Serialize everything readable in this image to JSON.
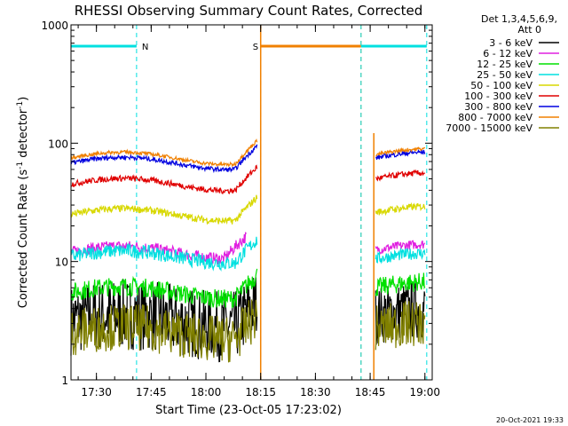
{
  "chart_data": {
    "type": "line",
    "title": "RHESSI Observing Summary Count Rates, Corrected",
    "xlabel": "Start Time (23-Oct-05 17:23:02)",
    "ylabel_main": "Corrected Count Rate (s",
    "ylabel_sup1": "-1",
    "ylabel_mid": " detector",
    "ylabel_sup2": "-1",
    "ylabel_end": ")",
    "y_scale": "log",
    "ylim": [
      1,
      1000
    ],
    "xlim_minutes": [
      "17:23:02",
      "19:02:00"
    ],
    "x_ticks": [
      "17:30",
      "17:45",
      "18:00",
      "18:15",
      "18:30",
      "18:45",
      "19:00"
    ],
    "y_ticks": [
      "1",
      "10",
      "100",
      "1000"
    ],
    "legend_header1": "Det 1,3,4,5,6,9,",
    "legend_header2": "Att 0",
    "legend": [
      {
        "label": "3 - 6 keV",
        "color": "#000000"
      },
      {
        "label": "6 - 12 keV",
        "color": "#e020e0"
      },
      {
        "label": "12 - 25 keV",
        "color": "#00e000"
      },
      {
        "label": "25 - 50 keV",
        "color": "#00e0e0"
      },
      {
        "label": "50 - 100 keV",
        "color": "#d8d800"
      },
      {
        "label": "100 - 300 keV",
        "color": "#e00000"
      },
      {
        "label": "300 - 800 keV",
        "color": "#0000e0"
      },
      {
        "label": "800 - 7000 keV",
        "color": "#f08000"
      },
      {
        "label": "7000 - 15000 keV",
        "color": "#808000"
      }
    ],
    "flags": [
      {
        "label": "N",
        "color": "#00e0e0",
        "start": "17:23:02",
        "end": "17:41:00"
      },
      {
        "label": "S",
        "color": "#f08000",
        "start": "18:15:00",
        "end": "18:42:30"
      },
      {
        "label": "",
        "color": "#00e0e0",
        "start": "18:42:30",
        "end": "19:00:30"
      }
    ],
    "series": [
      {
        "name": "3 - 6 keV",
        "color": "#000000",
        "segments": [
          {
            "start": "17:23:02",
            "end": "18:14:00",
            "level": 3.2,
            "noise": 0.3
          },
          {
            "start": "18:46:30",
            "end": "19:00:00",
            "level": 3.5,
            "noise": 0.25
          }
        ]
      },
      {
        "name": "6 - 12 keV",
        "color": "#e020e0",
        "segments": [
          {
            "start": "17:23:02",
            "end": "18:11:00",
            "level": 12,
            "noise": 0.05
          },
          {
            "start": "18:46:30",
            "end": "19:00:00",
            "level": 12.5,
            "noise": 0.04
          }
        ]
      },
      {
        "name": "12 - 25 keV",
        "color": "#00e000",
        "segments": [
          {
            "start": "17:23:02",
            "end": "18:14:00",
            "level": 5.5,
            "noise": 0.08
          },
          {
            "start": "18:46:30",
            "end": "19:00:00",
            "level": 6,
            "noise": 0.08
          }
        ]
      },
      {
        "name": "25 - 50 keV",
        "color": "#00e0e0",
        "segments": [
          {
            "start": "17:23:02",
            "end": "18:14:00",
            "level": 11,
            "noise": 0.06
          },
          {
            "start": "18:46:30",
            "end": "19:00:00",
            "level": 10.5,
            "noise": 0.05
          }
        ]
      },
      {
        "name": "50 - 100 keV",
        "color": "#d8d800",
        "segments": [
          {
            "start": "17:23:02",
            "end": "18:14:00",
            "level": 25,
            "noise": 0.03
          },
          {
            "start": "18:46:30",
            "end": "19:00:00",
            "level": 26,
            "noise": 0.03
          }
        ]
      },
      {
        "name": "100 - 300 keV",
        "color": "#e00000",
        "segments": [
          {
            "start": "17:23:02",
            "end": "18:14:00",
            "level": 45,
            "noise": 0.025
          },
          {
            "start": "18:46:30",
            "end": "19:00:00",
            "level": 50,
            "noise": 0.025
          }
        ]
      },
      {
        "name": "300 - 800 keV",
        "color": "#0000e0",
        "segments": [
          {
            "start": "17:23:02",
            "end": "18:14:00",
            "level": 68,
            "noise": 0.02
          },
          {
            "start": "18:46:30",
            "end": "19:00:00",
            "level": 75,
            "noise": 0.02
          }
        ]
      },
      {
        "name": "800 - 7000 keV",
        "color": "#f08000",
        "segments": [
          {
            "start": "17:23:02",
            "end": "18:14:00",
            "level": 75,
            "noise": 0.015
          },
          {
            "start": "18:46:30",
            "end": "19:00:00",
            "level": 80,
            "noise": 0.015
          }
        ]
      },
      {
        "name": "7000 - 15000 keV",
        "color": "#808000",
        "segments": [
          {
            "start": "17:23:02",
            "end": "18:14:00",
            "level": 2.5,
            "noise": 0.2
          },
          {
            "start": "18:46:30",
            "end": "19:00:00",
            "level": 2.7,
            "noise": 0.2
          }
        ]
      }
    ],
    "footer": "20-Oct-2021 19:33"
  }
}
